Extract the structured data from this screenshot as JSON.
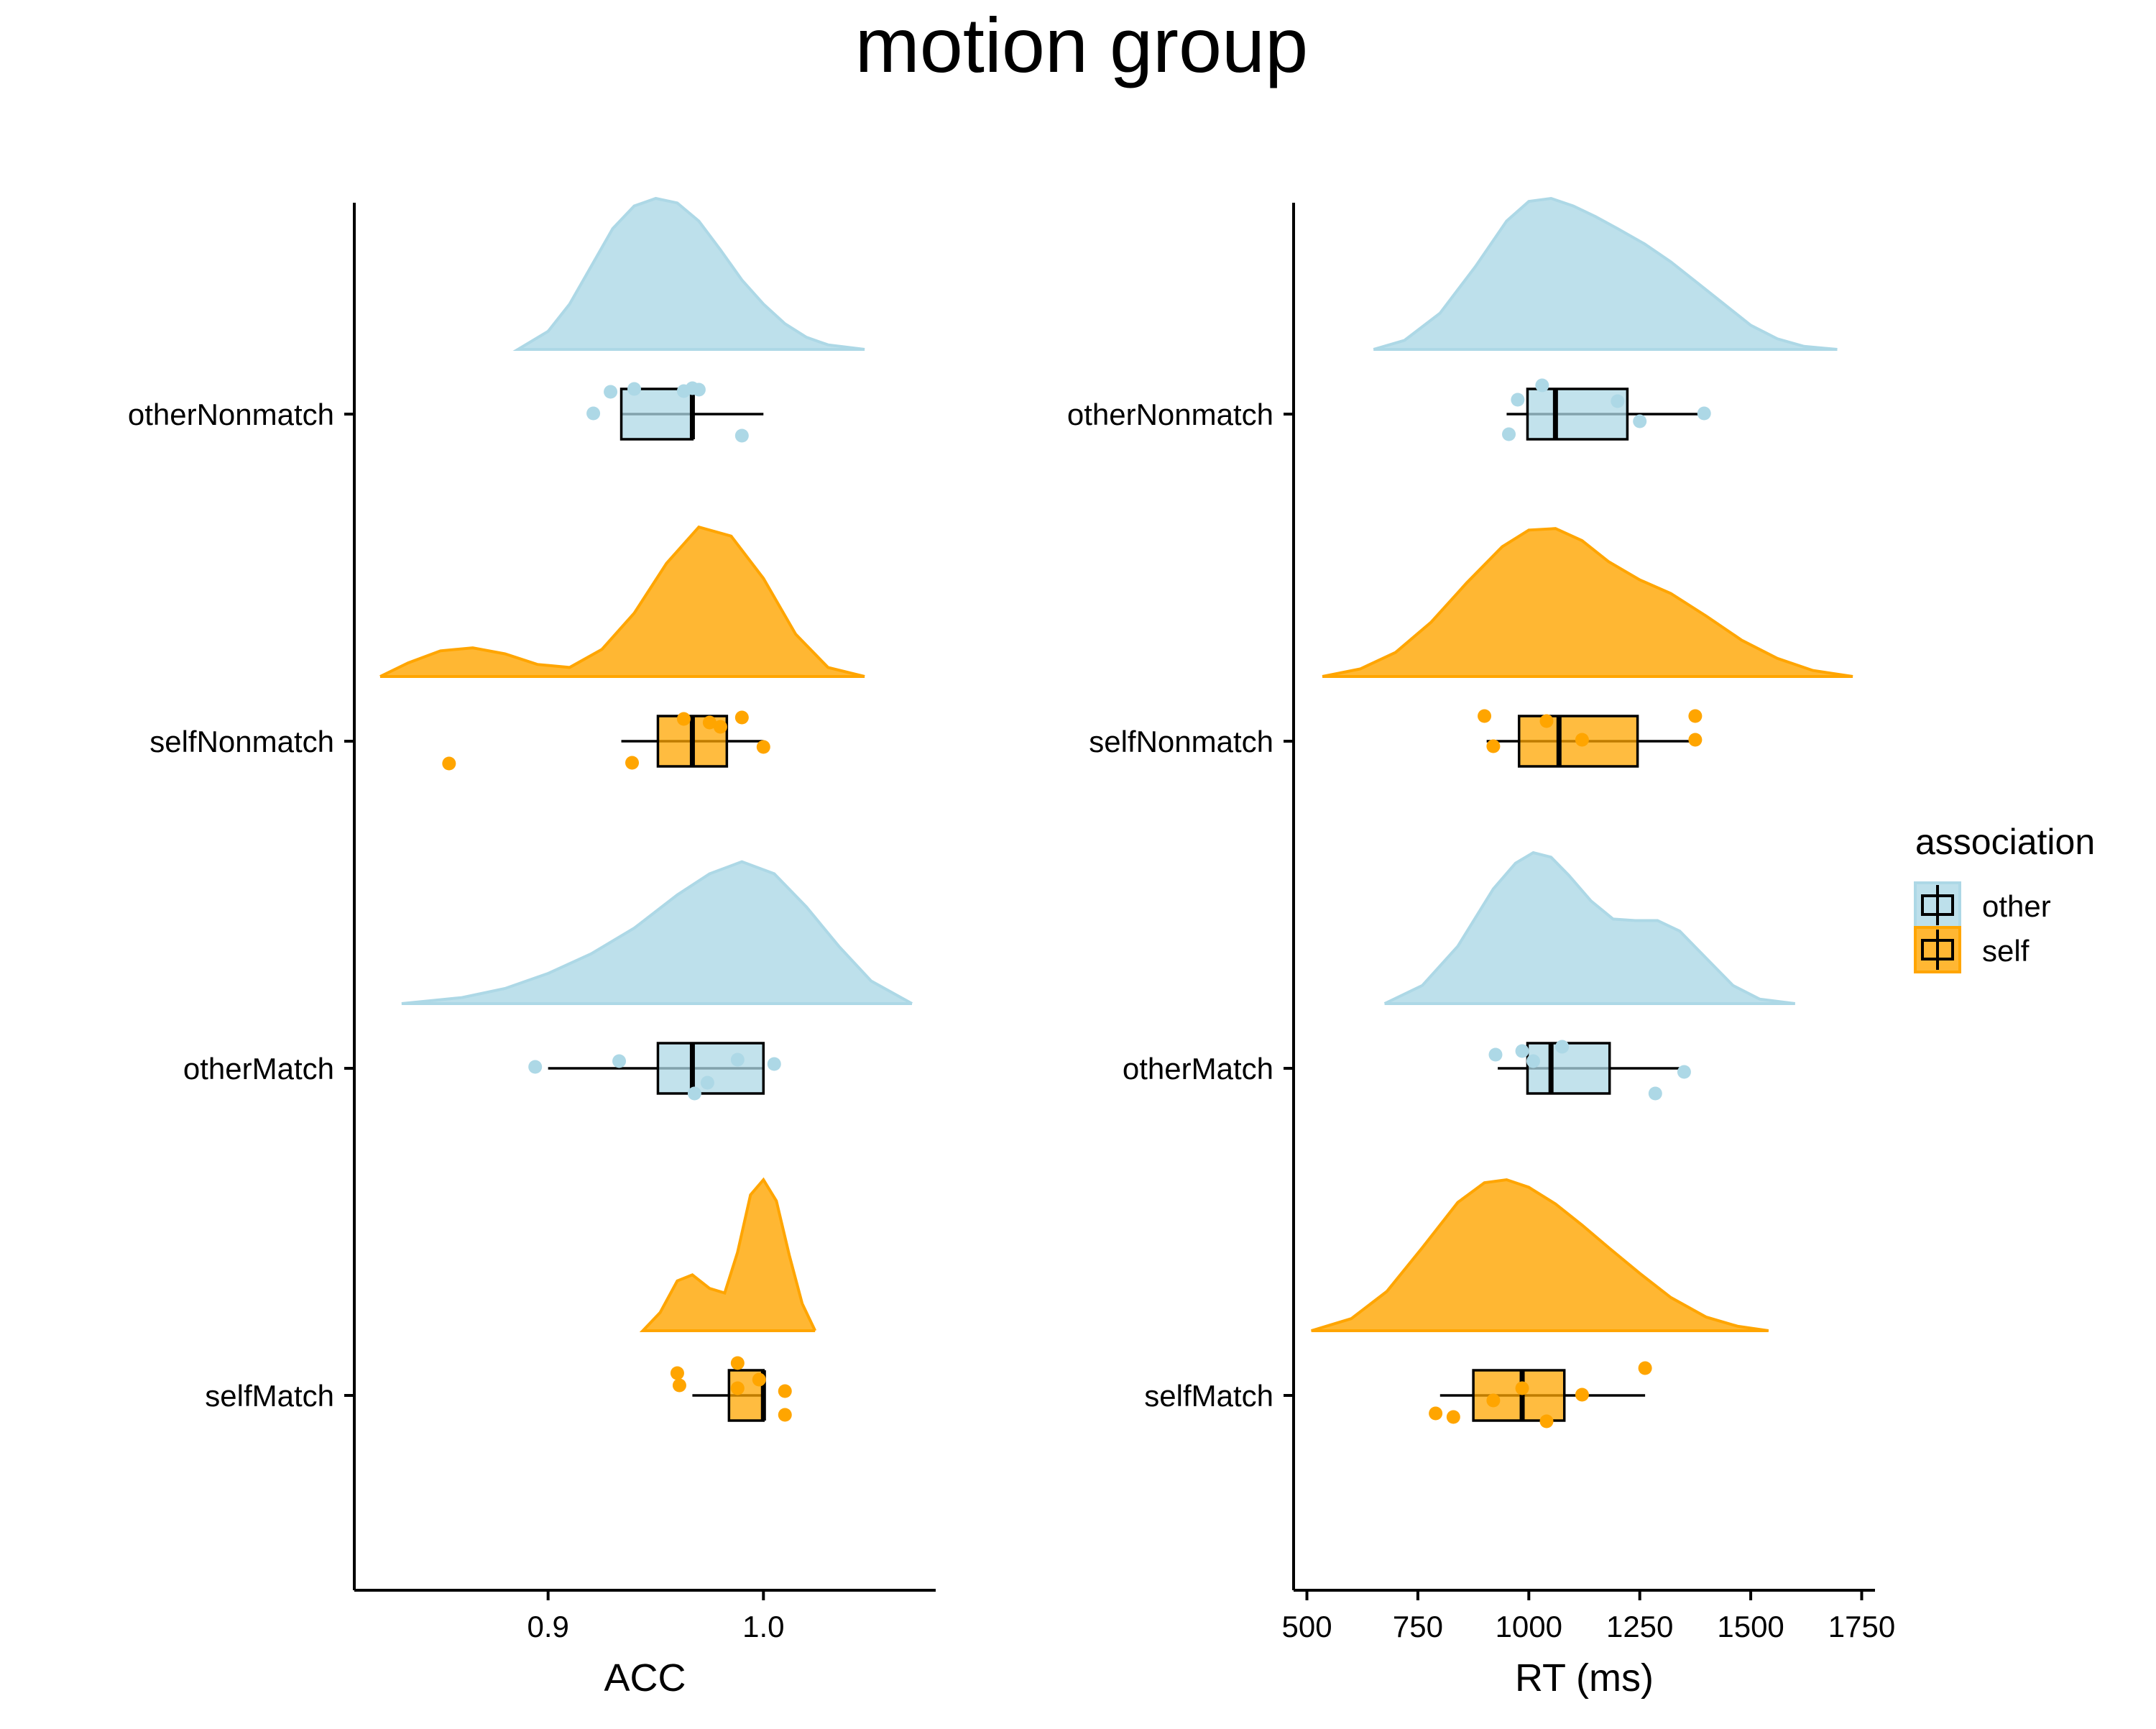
{
  "chart_data": {
    "type": "raincloud",
    "title": "motion group",
    "legend": {
      "title": "association",
      "placement": "right",
      "entries": [
        {
          "label": "other",
          "color": "#ADD8E6"
        },
        {
          "label": "self",
          "color": "#FFA500"
        }
      ]
    },
    "categories": [
      "otherNonmatch",
      "selfNonmatch",
      "otherMatch",
      "selfMatch"
    ],
    "category_association": [
      "other",
      "self",
      "other",
      "self"
    ],
    "panels": [
      {
        "xlabel": "ACC",
        "xlim": [
          0.81,
          1.08
        ],
        "xticks": [
          0.9,
          1.0
        ],
        "xtick_labels": [
          "0.9",
          "1.0"
        ],
        "groups": [
          {
            "category": "otherNonmatch",
            "association": "other",
            "box": {
              "min": 0.934,
              "q1": 0.934,
              "median": 0.967,
              "q3": 0.967,
              "max": 1.0
            },
            "points": [
              {
                "x": 0.929,
                "jitter": 0.31
              },
              {
                "x": 0.94,
                "jitter": 0.35
              },
              {
                "x": 0.963,
                "jitter": 0.32
              },
              {
                "x": 0.967,
                "jitter": 0.36
              },
              {
                "x": 0.97,
                "jitter": 0.34
              },
              {
                "x": 0.921,
                "jitter": 0.01
              },
              {
                "x": 0.99,
                "jitter": -0.3
              }
            ],
            "density": {
              "x": [
                0.886,
                0.9,
                0.91,
                0.92,
                0.93,
                0.94,
                0.95,
                0.96,
                0.97,
                0.98,
                0.99,
                1.0,
                1.01,
                1.02,
                1.03,
                1.047
              ],
              "y": [
                0.0,
                0.12,
                0.3,
                0.55,
                0.8,
                0.95,
                1.0,
                0.97,
                0.85,
                0.66,
                0.46,
                0.3,
                0.17,
                0.08,
                0.03,
                0.0
              ]
            }
          },
          {
            "category": "selfNonmatch",
            "association": "self",
            "box": {
              "min": 0.934,
              "q1": 0.951,
              "median": 0.967,
              "q3": 0.983,
              "max": 1.0
            },
            "points": [
              {
                "x": 0.963,
                "jitter": 0.31
              },
              {
                "x": 0.975,
                "jitter": 0.26
              },
              {
                "x": 0.98,
                "jitter": 0.2
              },
              {
                "x": 0.99,
                "jitter": 0.33
              },
              {
                "x": 1.0,
                "jitter": -0.08
              },
              {
                "x": 0.939,
                "jitter": -0.3
              },
              {
                "x": 0.854,
                "jitter": -0.31
              }
            ],
            "density": {
              "x": [
                0.822,
                0.835,
                0.85,
                0.865,
                0.88,
                0.895,
                0.91,
                0.925,
                0.94,
                0.955,
                0.97,
                0.985,
                1.0,
                1.015,
                1.03,
                1.047
              ],
              "y": [
                0.0,
                0.09,
                0.17,
                0.19,
                0.15,
                0.08,
                0.06,
                0.18,
                0.42,
                0.75,
                0.99,
                0.93,
                0.65,
                0.28,
                0.06,
                0.0
              ]
            }
          },
          {
            "category": "otherMatch",
            "association": "other",
            "box": {
              "min": 0.9,
              "q1": 0.951,
              "median": 0.967,
              "q3": 1.0,
              "max": 1.0
            },
            "points": [
              {
                "x": 0.894,
                "jitter": 0.02
              },
              {
                "x": 0.933,
                "jitter": 0.1
              },
              {
                "x": 0.988,
                "jitter": 0.12
              },
              {
                "x": 1.005,
                "jitter": 0.06
              },
              {
                "x": 0.974,
                "jitter": -0.2
              },
              {
                "x": 0.968,
                "jitter": -0.35
              }
            ],
            "density": {
              "x": [
                0.832,
                0.86,
                0.88,
                0.9,
                0.92,
                0.94,
                0.96,
                0.975,
                0.99,
                1.005,
                1.02,
                1.035,
                1.05,
                1.069
              ],
              "y": [
                0.0,
                0.04,
                0.1,
                0.2,
                0.33,
                0.5,
                0.72,
                0.86,
                0.94,
                0.86,
                0.64,
                0.38,
                0.15,
                0.0
              ]
            }
          },
          {
            "category": "selfMatch",
            "association": "self",
            "box": {
              "min": 0.967,
              "q1": 0.984,
              "median": 1.0,
              "q3": 1.0,
              "max": 1.0
            },
            "points": [
              {
                "x": 0.988,
                "jitter": 0.45
              },
              {
                "x": 0.96,
                "jitter": 0.31
              },
              {
                "x": 0.998,
                "jitter": 0.22
              },
              {
                "x": 0.961,
                "jitter": 0.14
              },
              {
                "x": 0.988,
                "jitter": 0.1
              },
              {
                "x": 1.01,
                "jitter": 0.06
              },
              {
                "x": 1.01,
                "jitter": -0.27
              }
            ],
            "density": {
              "x": [
                0.944,
                0.952,
                0.96,
                0.967,
                0.975,
                0.982,
                0.988,
                0.994,
                1.0,
                1.006,
                1.012,
                1.018,
                1.024
              ],
              "y": [
                0.0,
                0.12,
                0.33,
                0.37,
                0.28,
                0.25,
                0.52,
                0.9,
                1.0,
                0.86,
                0.5,
                0.18,
                0.0
              ]
            }
          }
        ]
      },
      {
        "xlabel": "RT (ms)",
        "xlim": [
          470,
          1780
        ],
        "xticks": [
          500,
          750,
          1000,
          1250,
          1500,
          1750
        ],
        "xtick_labels": [
          "500",
          "750",
          "1000",
          "1250",
          "1500",
          "1750"
        ],
        "groups": [
          {
            "category": "otherNonmatch",
            "association": "other",
            "box": {
              "min": 950,
              "q1": 997,
              "median": 1060,
              "q3": 1222,
              "max": 1395
            },
            "points": [
              {
                "x": 1030,
                "jitter": 0.4
              },
              {
                "x": 975,
                "jitter": 0.2
              },
              {
                "x": 1200,
                "jitter": 0.18
              },
              {
                "x": 1250,
                "jitter": -0.1
              },
              {
                "x": 1395,
                "jitter": 0.01
              },
              {
                "x": 955,
                "jitter": -0.28
              }
            ],
            "density": {
              "x": [
                650,
                720,
                800,
                880,
                950,
                1000,
                1050,
                1100,
                1150,
                1200,
                1260,
                1320,
                1380,
                1440,
                1500,
                1560,
                1620,
                1695
              ],
              "y": [
                0.0,
                0.06,
                0.24,
                0.55,
                0.85,
                0.98,
                1.0,
                0.95,
                0.88,
                0.8,
                0.7,
                0.58,
                0.44,
                0.3,
                0.16,
                0.07,
                0.02,
                0.0
              ]
            }
          },
          {
            "category": "selfNonmatch",
            "association": "self",
            "box": {
              "min": 905,
              "q1": 978,
              "median": 1068,
              "q3": 1245,
              "max": 1375
            },
            "points": [
              {
                "x": 900,
                "jitter": 0.35
              },
              {
                "x": 1040,
                "jitter": 0.28
              },
              {
                "x": 1375,
                "jitter": 0.35
              },
              {
                "x": 1375,
                "jitter": 0.02
              },
              {
                "x": 1120,
                "jitter": 0.02
              },
              {
                "x": 920,
                "jitter": -0.07
              }
            ],
            "density": {
              "x": [
                535,
                620,
                700,
                780,
                860,
                940,
                1000,
                1060,
                1120,
                1180,
                1250,
                1320,
                1400,
                1480,
                1560,
                1640,
                1730
              ],
              "y": [
                0.0,
                0.05,
                0.16,
                0.36,
                0.62,
                0.86,
                0.97,
                0.98,
                0.9,
                0.76,
                0.64,
                0.55,
                0.4,
                0.24,
                0.12,
                0.04,
                0.0
              ]
            }
          },
          {
            "category": "otherMatch",
            "association": "other",
            "box": {
              "min": 930,
              "q1": 997,
              "median": 1050,
              "q3": 1182,
              "max": 1350
            },
            "points": [
              {
                "x": 1075,
                "jitter": 0.3
              },
              {
                "x": 925,
                "jitter": 0.19
              },
              {
                "x": 985,
                "jitter": 0.24
              },
              {
                "x": 1010,
                "jitter": 0.1
              },
              {
                "x": 1350,
                "jitter": -0.05
              },
              {
                "x": 1285,
                "jitter": -0.35
              }
            ],
            "density": {
              "x": [
                675,
                760,
                840,
                920,
                970,
                1010,
                1050,
                1090,
                1140,
                1190,
                1240,
                1290,
                1340,
                1400,
                1460,
                1520,
                1600
              ],
              "y": [
                0.0,
                0.12,
                0.38,
                0.76,
                0.93,
                1.0,
                0.97,
                0.85,
                0.68,
                0.56,
                0.55,
                0.55,
                0.48,
                0.3,
                0.12,
                0.03,
                0.0
              ]
            }
          },
          {
            "category": "selfMatch",
            "association": "self",
            "box": {
              "min": 800,
              "q1": 875,
              "median": 985,
              "q3": 1080,
              "max": 1262
            },
            "points": [
              {
                "x": 1262,
                "jitter": 0.38
              },
              {
                "x": 985,
                "jitter": 0.1
              },
              {
                "x": 1120,
                "jitter": 0.01
              },
              {
                "x": 920,
                "jitter": -0.07
              },
              {
                "x": 790,
                "jitter": -0.25
              },
              {
                "x": 830,
                "jitter": -0.3
              },
              {
                "x": 1040,
                "jitter": -0.36
              }
            ],
            "density": {
              "x": [
                510,
                600,
                680,
                760,
                840,
                900,
                950,
                1000,
                1060,
                1120,
                1180,
                1250,
                1320,
                1400,
                1470,
                1540
              ],
              "y": [
                0.0,
                0.08,
                0.26,
                0.55,
                0.85,
                0.98,
                1.0,
                0.95,
                0.84,
                0.7,
                0.55,
                0.38,
                0.22,
                0.09,
                0.03,
                0.0
              ]
            }
          }
        ]
      }
    ]
  }
}
